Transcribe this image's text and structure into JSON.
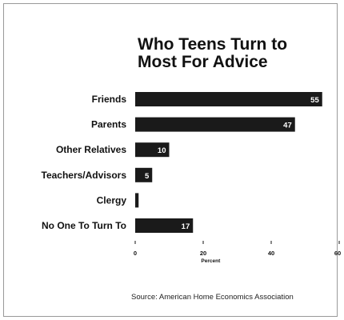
{
  "chart_data": {
    "type": "bar",
    "orientation": "horizontal",
    "title_lines": [
      "Who Teens Turn to",
      "Most For Advice"
    ],
    "categories": [
      "Friends",
      "Parents",
      "Other Relatives",
      "Teachers/Advisors",
      "Clergy",
      "No One To Turn To"
    ],
    "values": [
      55,
      47,
      10,
      5,
      1,
      17
    ],
    "data_labels": [
      "55",
      "47",
      "10",
      "5",
      "1",
      "17"
    ],
    "xlabel": "Percent",
    "ylabel": "",
    "xlim": [
      0,
      60
    ],
    "x_ticks": [
      "0",
      "20",
      "40",
      "60"
    ],
    "grid": false,
    "legend": "none",
    "bar_color": "#1a1a1a",
    "label_color": "#ffffff"
  },
  "source": "Source: American Home Economics Association"
}
